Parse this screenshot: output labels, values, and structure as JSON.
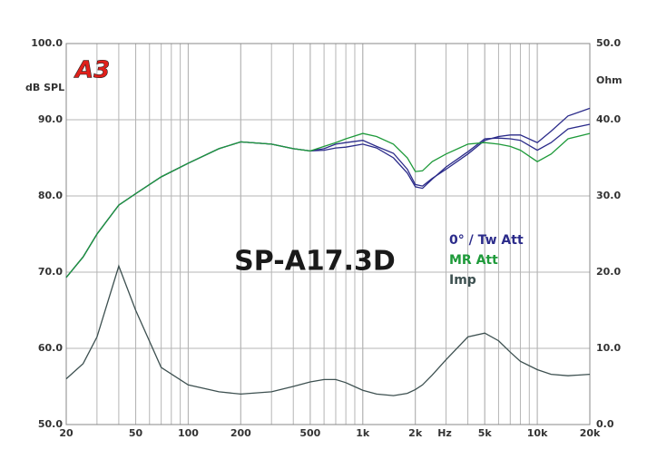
{
  "chart_data": {
    "type": "line",
    "title": "SP-A17.3D",
    "logo": "A3",
    "y_label": "dB SPL",
    "y2_label": "Ohm",
    "x_unit_label": "Hz",
    "log_x": true,
    "grid": true,
    "x": [
      20,
      25,
      30,
      40,
      50,
      70,
      100,
      150,
      200,
      300,
      400,
      500,
      600,
      700,
      800,
      1000,
      1200,
      1500,
      1800,
      2000,
      2200,
      2500,
      3000,
      4000,
      5000,
      6000,
      7000,
      8000,
      10000,
      12000,
      15000,
      20000
    ],
    "xlim": [
      20,
      20000
    ],
    "xticks": [
      20,
      50,
      100,
      200,
      500,
      {
        "value": 1000,
        "label": "1k"
      },
      {
        "value": 2000,
        "label": "2k"
      },
      {
        "value": 5000,
        "label": "5k"
      },
      {
        "value": 10000,
        "label": "10k"
      },
      {
        "value": 20000,
        "label": "20k"
      }
    ],
    "ylim": [
      50,
      100
    ],
    "yticks": [
      {
        "value": 50,
        "label": "50.0"
      },
      {
        "value": 60,
        "label": "60.0"
      },
      {
        "value": 70,
        "label": "70.0"
      },
      {
        "value": 80,
        "label": "80.0"
      },
      {
        "value": 90,
        "label": "90.0"
      },
      {
        "value": 100,
        "label": "100.0"
      }
    ],
    "y2lim": [
      0,
      50
    ],
    "y2ticks": [
      {
        "value": 0,
        "label": "0.0"
      },
      {
        "value": 10,
        "label": "10.0"
      },
      {
        "value": 20,
        "label": "20.0"
      },
      {
        "value": 30,
        "label": "30.0"
      },
      {
        "value": 40,
        "label": "40.0"
      },
      {
        "value": 50,
        "label": "50.0"
      }
    ],
    "series": [
      {
        "name": "0° / Tw Att",
        "color": "#2b2b8a",
        "values": [
          69.3,
          72,
          75,
          78.8,
          80.3,
          82.5,
          84.3,
          86.2,
          87.1,
          86.8,
          86.2,
          85.9,
          86.2,
          86.8,
          87.0,
          87.3,
          86.5,
          85.6,
          83.5,
          81.5,
          81.3,
          82.3,
          83.5,
          85.5,
          87.3,
          87.8,
          88.0,
          88.0,
          87.0,
          88.5,
          90.5,
          91.5
        ]
      },
      {
        "name": null,
        "color": "#2b2b8a",
        "values": [
          69.3,
          72,
          75,
          78.8,
          80.3,
          82.5,
          84.3,
          86.2,
          87.1,
          86.8,
          86.2,
          85.9,
          86.0,
          86.3,
          86.4,
          86.8,
          86.3,
          85.0,
          83.0,
          81.2,
          81.0,
          82.2,
          83.8,
          85.8,
          87.5,
          87.6,
          87.5,
          87.3,
          86.0,
          87.0,
          88.8,
          89.4
        ]
      },
      {
        "name": "MR Att",
        "color": "#1e9a3a",
        "values": [
          69.3,
          72,
          75,
          78.8,
          80.3,
          82.5,
          84.3,
          86.2,
          87.1,
          86.8,
          86.2,
          85.9,
          86.5,
          87.0,
          87.5,
          88.2,
          87.8,
          86.8,
          85.0,
          83.2,
          83.3,
          84.5,
          85.5,
          86.8,
          87.0,
          86.8,
          86.5,
          86.0,
          84.5,
          85.5,
          87.5,
          88.2
        ]
      },
      {
        "name": "Imp",
        "color": "#3d5050",
        "axis": "y2",
        "values": [
          6.0,
          8.0,
          11.5,
          20.8,
          15,
          7.5,
          5.2,
          4.3,
          4.0,
          4.3,
          5.0,
          5.6,
          5.9,
          5.9,
          5.5,
          4.5,
          4.0,
          3.8,
          4.1,
          4.6,
          5.2,
          6.5,
          8.5,
          11.5,
          12.0,
          11.0,
          9.5,
          8.3,
          7.2,
          6.6,
          6.4,
          6.6
        ]
      }
    ]
  }
}
